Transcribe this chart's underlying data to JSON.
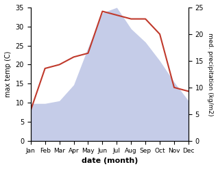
{
  "months": [
    "Jan",
    "Feb",
    "Mar",
    "Apr",
    "May",
    "Jun",
    "Jul",
    "Aug",
    "Sep",
    "Oct",
    "Nov",
    "Dec"
  ],
  "temp": [
    8.0,
    19.0,
    20.0,
    22.0,
    23.0,
    34.0,
    33.0,
    32.0,
    32.0,
    28.0,
    14.0,
    13.0
  ],
  "precip": [
    7.0,
    7.0,
    7.5,
    10.5,
    17.5,
    24.0,
    25.0,
    21.0,
    18.5,
    15.0,
    11.0,
    7.5
  ],
  "temp_color": "#c0392b",
  "precip_fill_color": "#c5cce8",
  "temp_ylim": [
    0,
    35
  ],
  "precip_ylim": [
    0,
    25
  ],
  "temp_precip_ratio": 1.4,
  "xlabel": "date (month)",
  "ylabel_left": "max temp (C)",
  "ylabel_right": "med. precipitation (kg/m2)",
  "bg_color": "#ffffff"
}
